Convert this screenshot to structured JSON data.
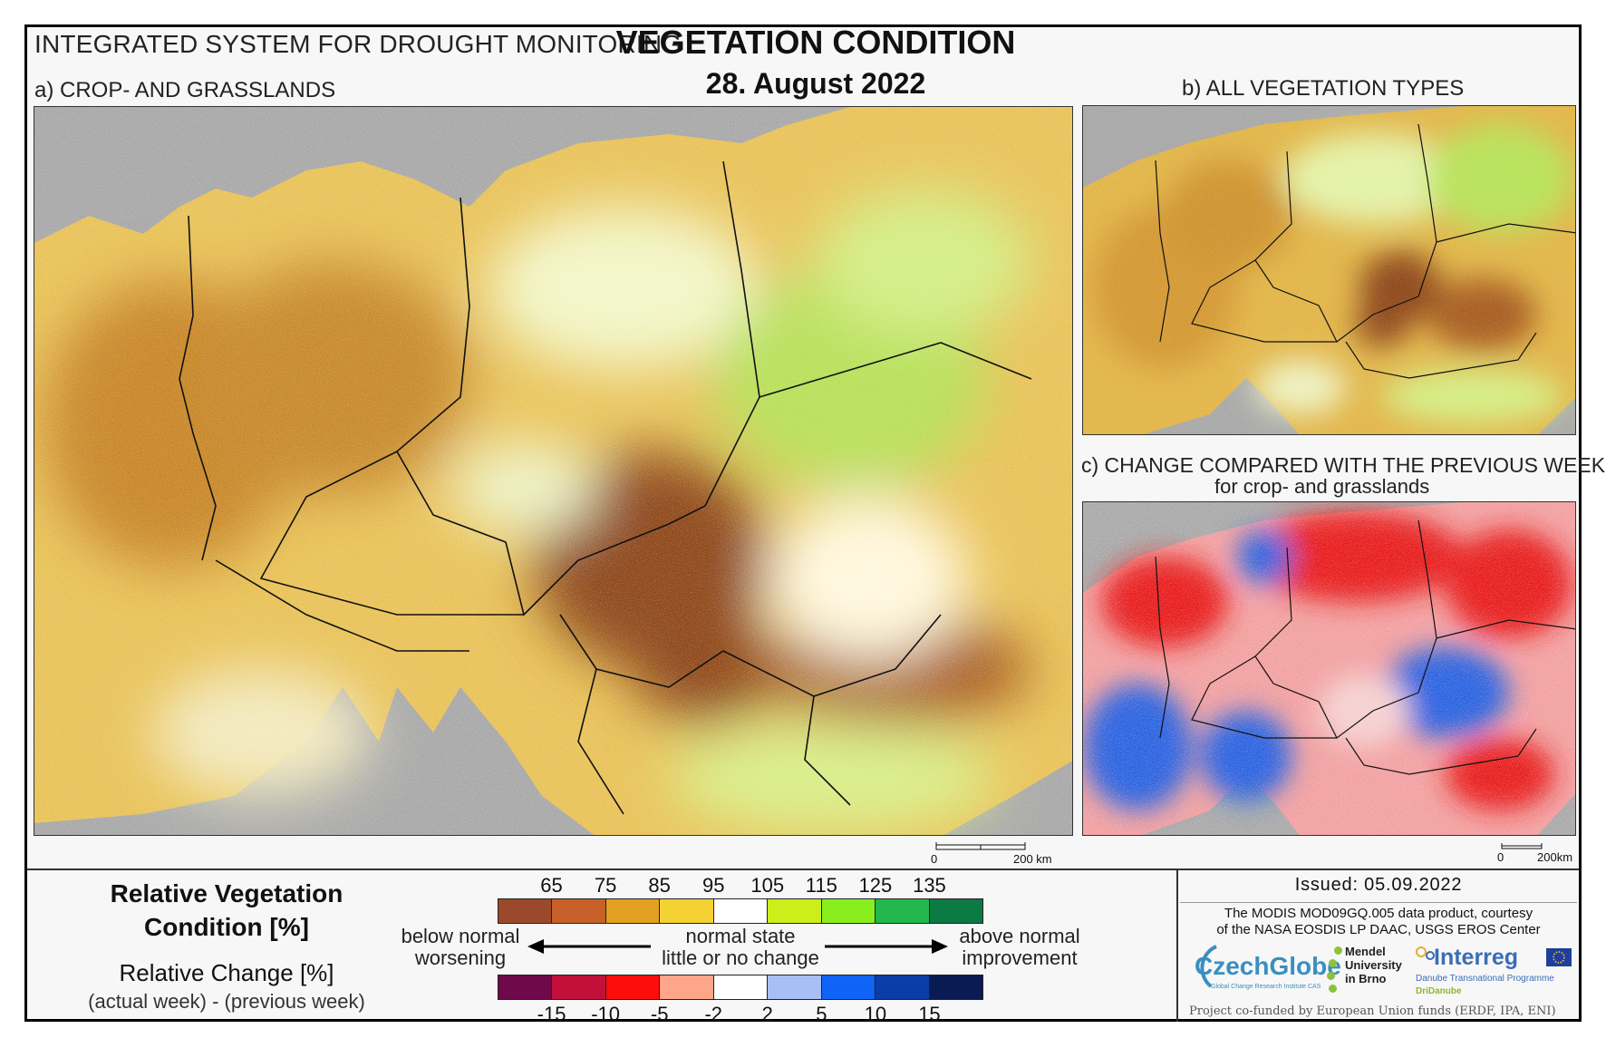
{
  "header": {
    "system_title": "INTEGRATED SYSTEM FOR DROUGHT MONITORING",
    "main_title": "VEGETATION CONDITION",
    "date": "28. August 2022"
  },
  "panels": {
    "a": {
      "label": "a) CROP- AND GRASSLANDS",
      "scale_zero": "0",
      "scale_end": "200 km"
    },
    "b": {
      "label": "b) ALL VEGETATION TYPES"
    },
    "c": {
      "label": "c) CHANGE COMPARED WITH THE PREVIOUS WEEK",
      "sublabel": "for crop- and grasslands",
      "scale_zero": "0",
      "scale_end": "200km"
    }
  },
  "legend": {
    "condition_title_line1": "Relative Vegetation",
    "condition_title_line2": "Condition [%]",
    "change_title": "Relative Change [%]",
    "change_subtitle": "(actual week) - (previous week)",
    "condition_ticks": [
      "65",
      "75",
      "85",
      "95",
      "105",
      "115",
      "125",
      "135"
    ],
    "condition_colors": [
      "#9a4a2a",
      "#c8602a",
      "#e3a020",
      "#f5d233",
      "#ffffff",
      "#cdee1a",
      "#88ee1e",
      "#22b84c",
      "#0b7a45"
    ],
    "change_ticks": [
      "-15",
      "-10",
      "-5",
      "-2",
      "2",
      "5",
      "10",
      "15"
    ],
    "change_colors": [
      "#6e0a4a",
      "#c3103a",
      "#ff0d0d",
      "#ffa58a",
      "#ffffff",
      "#a8bff5",
      "#0f63f5",
      "#0a3da8",
      "#0a1a52"
    ],
    "below_line1": "below normal",
    "below_line2": "worsening",
    "normal_line1": "normal state",
    "normal_line2": "little or no change",
    "above_line1": "above normal",
    "above_line2": "improvement"
  },
  "info": {
    "issued": "Issued: 05.09.2022",
    "credit_line1": "The MODIS MOD09GQ.005 data product, courtesy",
    "credit_line2": "of the NASA EOSDIS LP DAAC, USGS EROS Center",
    "funded": "Project co-funded by European Union funds (ERDF, IPA, ENI)",
    "logo_czechglobe": "CzechGlobe",
    "logo_czechglobe_sub": "Global Change Research Institute CAS",
    "logo_mendel_line1": "Mendel",
    "logo_mendel_line2": "University",
    "logo_mendel_line3": "in Brno",
    "logo_interreg": "Interreg",
    "logo_danube": "Danube Transnational Programme",
    "logo_dri": "DriDanube"
  }
}
